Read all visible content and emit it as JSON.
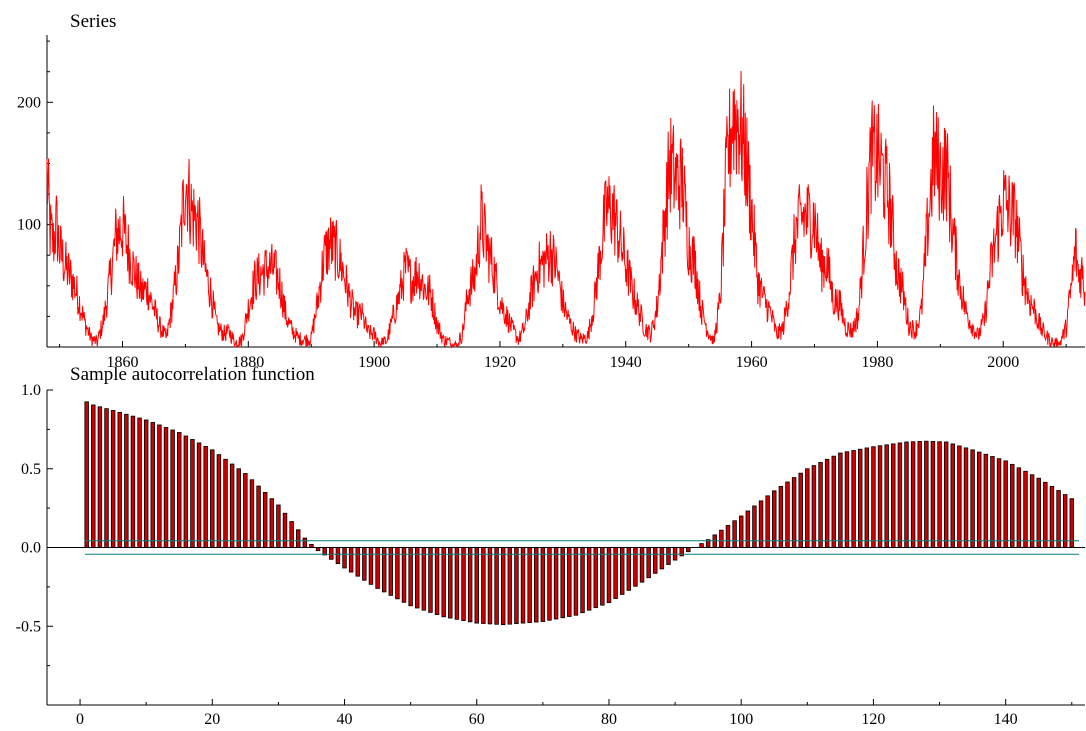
{
  "chart_data": [
    {
      "type": "line",
      "title": "Series",
      "xlabel": "",
      "ylabel": "",
      "xlim": [
        1848,
        2013
      ],
      "ylim": [
        0,
        255
      ],
      "x_ticks": [
        1860,
        1880,
        1900,
        1920,
        1940,
        1960,
        1980,
        2000
      ],
      "y_ticks": [
        100,
        200
      ],
      "grid": false,
      "line_color": "#ff0000",
      "series": [
        {
          "cycles": [
            {
              "x": 1848.0,
              "y": 140
            },
            {
              "x": 1848.5,
              "y": 95
            },
            {
              "x": 1849.0,
              "y": 85
            },
            {
              "x": 1849.5,
              "y": 100
            },
            {
              "x": 1850.0,
              "y": 80
            },
            {
              "x": 1851.0,
              "y": 65
            },
            {
              "x": 1852.0,
              "y": 55
            },
            {
              "x": 1853.0,
              "y": 40
            },
            {
              "x": 1854.0,
              "y": 20
            },
            {
              "x": 1855.0,
              "y": 7
            },
            {
              "x": 1856.0,
              "y": 4
            },
            {
              "x": 1857.0,
              "y": 22
            },
            {
              "x": 1858.0,
              "y": 55
            },
            {
              "x": 1859.0,
              "y": 92
            },
            {
              "x": 1860.0,
              "y": 98
            },
            {
              "x": 1861.0,
              "y": 78
            },
            {
              "x": 1862.0,
              "y": 60
            },
            {
              "x": 1863.0,
              "y": 45
            },
            {
              "x": 1864.0,
              "y": 47
            },
            {
              "x": 1865.0,
              "y": 31
            },
            {
              "x": 1866.0,
              "y": 16
            },
            {
              "x": 1867.0,
              "y": 7
            },
            {
              "x": 1868.0,
              "y": 37
            },
            {
              "x": 1869.0,
              "y": 74
            },
            {
              "x": 1870.0,
              "y": 139
            },
            {
              "x": 1871.0,
              "y": 111
            },
            {
              "x": 1872.0,
              "y": 102
            },
            {
              "x": 1873.0,
              "y": 66
            },
            {
              "x": 1874.0,
              "y": 45
            },
            {
              "x": 1875.0,
              "y": 17
            },
            {
              "x": 1876.0,
              "y": 11
            },
            {
              "x": 1877.0,
              "y": 12
            },
            {
              "x": 1878.0,
              "y": 3
            },
            {
              "x": 1879.0,
              "y": 6
            },
            {
              "x": 1880.0,
              "y": 32
            },
            {
              "x": 1881.0,
              "y": 54
            },
            {
              "x": 1882.0,
              "y": 60
            },
            {
              "x": 1883.0,
              "y": 64
            },
            {
              "x": 1884.0,
              "y": 64
            },
            {
              "x": 1885.0,
              "y": 52
            },
            {
              "x": 1886.0,
              "y": 25
            },
            {
              "x": 1887.0,
              "y": 13
            },
            {
              "x": 1888.0,
              "y": 7
            },
            {
              "x": 1889.0,
              "y": 6
            },
            {
              "x": 1890.0,
              "y": 7
            },
            {
              "x": 1891.0,
              "y": 36
            },
            {
              "x": 1892.0,
              "y": 73
            },
            {
              "x": 1893.0,
              "y": 85
            },
            {
              "x": 1894.0,
              "y": 78
            },
            {
              "x": 1895.0,
              "y": 64
            },
            {
              "x": 1896.0,
              "y": 42
            },
            {
              "x": 1897.0,
              "y": 26
            },
            {
              "x": 1898.0,
              "y": 27
            },
            {
              "x": 1899.0,
              "y": 12
            },
            {
              "x": 1900.0,
              "y": 10
            },
            {
              "x": 1901.0,
              "y": 3
            },
            {
              "x": 1902.0,
              "y": 5
            },
            {
              "x": 1903.0,
              "y": 24
            },
            {
              "x": 1904.0,
              "y": 42
            },
            {
              "x": 1905.0,
              "y": 64
            },
            {
              "x": 1906.0,
              "y": 54
            },
            {
              "x": 1907.0,
              "y": 62
            },
            {
              "x": 1908.0,
              "y": 48
            },
            {
              "x": 1909.0,
              "y": 44
            },
            {
              "x": 1910.0,
              "y": 19
            },
            {
              "x": 1911.0,
              "y": 6
            },
            {
              "x": 1912.0,
              "y": 4
            },
            {
              "x": 1913.0,
              "y": 1
            },
            {
              "x": 1914.0,
              "y": 10
            },
            {
              "x": 1915.0,
              "y": 47
            },
            {
              "x": 1916.0,
              "y": 57
            },
            {
              "x": 1917.0,
              "y": 104
            },
            {
              "x": 1918.0,
              "y": 81
            },
            {
              "x": 1919.0,
              "y": 64
            },
            {
              "x": 1920.0,
              "y": 38
            },
            {
              "x": 1921.0,
              "y": 26
            },
            {
              "x": 1922.0,
              "y": 14
            },
            {
              "x": 1923.0,
              "y": 6
            },
            {
              "x": 1924.0,
              "y": 17
            },
            {
              "x": 1925.0,
              "y": 44
            },
            {
              "x": 1926.0,
              "y": 64
            },
            {
              "x": 1927.0,
              "y": 69
            },
            {
              "x": 1928.0,
              "y": 78
            },
            {
              "x": 1929.0,
              "y": 65
            },
            {
              "x": 1930.0,
              "y": 36
            },
            {
              "x": 1931.0,
              "y": 21
            },
            {
              "x": 1932.0,
              "y": 11
            },
            {
              "x": 1933.0,
              "y": 6
            },
            {
              "x": 1934.0,
              "y": 9
            },
            {
              "x": 1935.0,
              "y": 36
            },
            {
              "x": 1936.0,
              "y": 80
            },
            {
              "x": 1937.0,
              "y": 114
            },
            {
              "x": 1938.0,
              "y": 110
            },
            {
              "x": 1939.0,
              "y": 89
            },
            {
              "x": 1940.0,
              "y": 68
            },
            {
              "x": 1941.0,
              "y": 47
            },
            {
              "x": 1942.0,
              "y": 31
            },
            {
              "x": 1943.0,
              "y": 16
            },
            {
              "x": 1944.0,
              "y": 10
            },
            {
              "x": 1945.0,
              "y": 33
            },
            {
              "x": 1946.0,
              "y": 93
            },
            {
              "x": 1947.0,
              "y": 151
            },
            {
              "x": 1948.0,
              "y": 136
            },
            {
              "x": 1949.0,
              "y": 135
            },
            {
              "x": 1950.0,
              "y": 84
            },
            {
              "x": 1951.0,
              "y": 69
            },
            {
              "x": 1952.0,
              "y": 31
            },
            {
              "x": 1953.0,
              "y": 14
            },
            {
              "x": 1954.0,
              "y": 4
            },
            {
              "x": 1955.0,
              "y": 38
            },
            {
              "x": 1956.0,
              "y": 142
            },
            {
              "x": 1957.0,
              "y": 190
            },
            {
              "x": 1958.0,
              "y": 185
            },
            {
              "x": 1959.0,
              "y": 159
            },
            {
              "x": 1960.0,
              "y": 112
            },
            {
              "x": 1961.0,
              "y": 54
            },
            {
              "x": 1962.0,
              "y": 38
            },
            {
              "x": 1963.0,
              "y": 28
            },
            {
              "x": 1964.0,
              "y": 10
            },
            {
              "x": 1965.0,
              "y": 15
            },
            {
              "x": 1966.0,
              "y": 47
            },
            {
              "x": 1967.0,
              "y": 94
            },
            {
              "x": 1968.0,
              "y": 106
            },
            {
              "x": 1969.0,
              "y": 106
            },
            {
              "x": 1970.0,
              "y": 105
            },
            {
              "x": 1971.0,
              "y": 67
            },
            {
              "x": 1972.0,
              "y": 69
            },
            {
              "x": 1973.0,
              "y": 38
            },
            {
              "x": 1974.0,
              "y": 35
            },
            {
              "x": 1975.0,
              "y": 16
            },
            {
              "x": 1976.0,
              "y": 13
            },
            {
              "x": 1977.0,
              "y": 27
            },
            {
              "x": 1978.0,
              "y": 93
            },
            {
              "x": 1979.0,
              "y": 155
            },
            {
              "x": 1980.0,
              "y": 155
            },
            {
              "x": 1981.0,
              "y": 140
            },
            {
              "x": 1982.0,
              "y": 116
            },
            {
              "x": 1983.0,
              "y": 67
            },
            {
              "x": 1984.0,
              "y": 46
            },
            {
              "x": 1985.0,
              "y": 18
            },
            {
              "x": 1986.0,
              "y": 13
            },
            {
              "x": 1987.0,
              "y": 29
            },
            {
              "x": 1988.0,
              "y": 100
            },
            {
              "x": 1989.0,
              "y": 158
            },
            {
              "x": 1990.0,
              "y": 142
            },
            {
              "x": 1991.0,
              "y": 146
            },
            {
              "x": 1992.0,
              "y": 94
            },
            {
              "x": 1993.0,
              "y": 55
            },
            {
              "x": 1994.0,
              "y": 30
            },
            {
              "x": 1995.0,
              "y": 18
            },
            {
              "x": 1996.0,
              "y": 9
            },
            {
              "x": 1997.0,
              "y": 22
            },
            {
              "x": 1998.0,
              "y": 64
            },
            {
              "x": 1999.0,
              "y": 93
            },
            {
              "x": 2000.0,
              "y": 120
            },
            {
              "x": 2001.0,
              "y": 111
            },
            {
              "x": 2002.0,
              "y": 104
            },
            {
              "x": 2003.0,
              "y": 64
            },
            {
              "x": 2004.0,
              "y": 40
            },
            {
              "x": 2005.0,
              "y": 30
            },
            {
              "x": 2006.0,
              "y": 15
            },
            {
              "x": 2007.0,
              "y": 8
            },
            {
              "x": 2008.0,
              "y": 3
            },
            {
              "x": 2009.0,
              "y": 3
            },
            {
              "x": 2010.0,
              "y": 16
            },
            {
              "x": 2011.0,
              "y": 56
            },
            {
              "x": 2011.5,
              "y": 80
            },
            {
              "x": 2012.0,
              "y": 58
            },
            {
              "x": 2012.5,
              "y": 62
            },
            {
              "x": 2013.0,
              "y": 45
            }
          ]
        }
      ]
    },
    {
      "type": "bar",
      "title": "Sample autocorrelation function",
      "xlabel": "",
      "ylabel": "",
      "xlim": [
        -5,
        152
      ],
      "ylim": [
        -1.0,
        1.0
      ],
      "x_ticks": [
        0,
        20,
        40,
        60,
        80,
        100,
        120,
        140
      ],
      "y_ticks": [
        1.0,
        0.5,
        0.0,
        -0.5
      ],
      "y_tick_labels": [
        "1.0",
        "0.5",
        "0.0",
        "-0.5"
      ],
      "confidence_band": [
        0.043,
        -0.043
      ],
      "grid": false,
      "bar_color": "#cc0000",
      "band_color": "#008080",
      "lags": {
        "start": 1,
        "end": 150
      },
      "acf_anchor_values": [
        {
          "lag": 1,
          "value": 0.925
        },
        {
          "lag": 2,
          "value": 0.905
        },
        {
          "lag": 5,
          "value": 0.87
        },
        {
          "lag": 10,
          "value": 0.81
        },
        {
          "lag": 15,
          "value": 0.73
        },
        {
          "lag": 20,
          "value": 0.62
        },
        {
          "lag": 25,
          "value": 0.47
        },
        {
          "lag": 30,
          "value": 0.27
        },
        {
          "lag": 34,
          "value": 0.06
        },
        {
          "lag": 36,
          "value": -0.02
        },
        {
          "lag": 40,
          "value": -0.13
        },
        {
          "lag": 45,
          "value": -0.26
        },
        {
          "lag": 50,
          "value": -0.37
        },
        {
          "lag": 55,
          "value": -0.44
        },
        {
          "lag": 60,
          "value": -0.48
        },
        {
          "lag": 64,
          "value": -0.49
        },
        {
          "lag": 70,
          "value": -0.47
        },
        {
          "lag": 75,
          "value": -0.43
        },
        {
          "lag": 80,
          "value": -0.35
        },
        {
          "lag": 85,
          "value": -0.22
        },
        {
          "lag": 90,
          "value": -0.08
        },
        {
          "lag": 93,
          "value": 0.0
        },
        {
          "lag": 95,
          "value": 0.05
        },
        {
          "lag": 100,
          "value": 0.2
        },
        {
          "lag": 105,
          "value": 0.36
        },
        {
          "lag": 110,
          "value": 0.5
        },
        {
          "lag": 115,
          "value": 0.6
        },
        {
          "lag": 120,
          "value": 0.64
        },
        {
          "lag": 125,
          "value": 0.67
        },
        {
          "lag": 128,
          "value": 0.675
        },
        {
          "lag": 131,
          "value": 0.67
        },
        {
          "lag": 135,
          "value": 0.62
        },
        {
          "lag": 140,
          "value": 0.55
        },
        {
          "lag": 145,
          "value": 0.44
        },
        {
          "lag": 150,
          "value": 0.31
        }
      ]
    }
  ]
}
